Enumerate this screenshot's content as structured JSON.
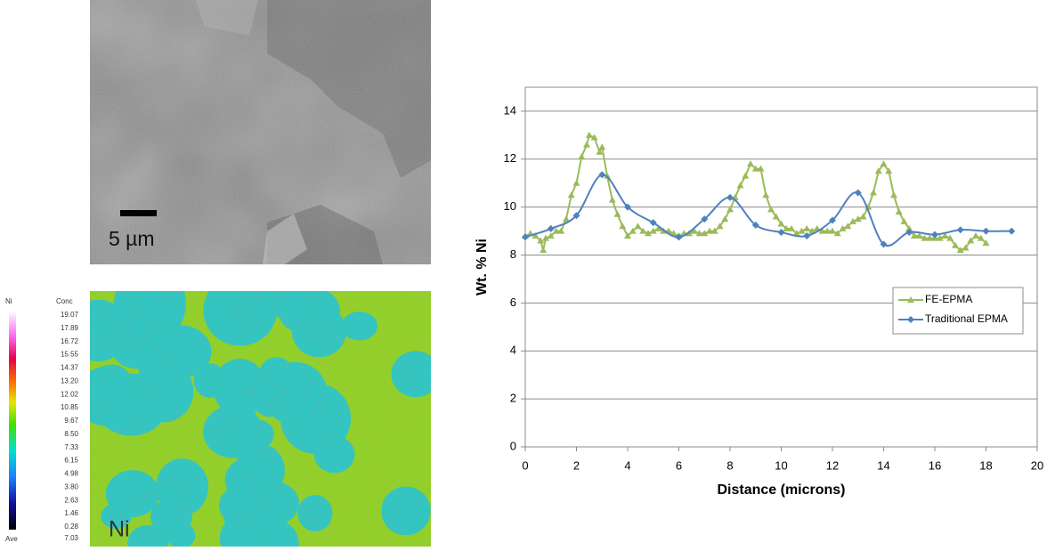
{
  "sem_image": {
    "scale_label": "5 µm"
  },
  "ni_map": {
    "colorbar_title": "Ni",
    "conc_label": "Conc",
    "levels": [
      "19.07",
      "17.89",
      "16.72",
      "15.55",
      "14.37",
      "13.20",
      "12.02",
      "10.85",
      "9.67",
      "8.50",
      "7.33",
      "6.15",
      "4.98",
      "3.80",
      "2.63",
      "1.46",
      "0.28"
    ],
    "ave_label": "Ave",
    "ave_value": "7.03",
    "map_label": "Ni"
  },
  "chart_data": {
    "type": "line",
    "x_label": "Distance (microns)",
    "y_label": "Wt. % Ni",
    "xlim": [
      0,
      20
    ],
    "xticks": [
      0,
      2,
      4,
      6,
      8,
      10,
      12,
      14,
      16,
      18,
      20
    ],
    "ylim": [
      0,
      15
    ],
    "yticks": [
      0,
      2,
      4,
      6,
      8,
      10,
      12,
      14
    ],
    "grid": true,
    "legend": "right",
    "series": [
      {
        "name": "FE-EPMA",
        "color": "#9bbb59",
        "marker": "triangle",
        "smooth": false,
        "x": [
          0,
          0.2,
          0.4,
          0.6,
          0.7,
          0.8,
          1.0,
          1.2,
          1.4,
          1.6,
          1.8,
          2.0,
          2.2,
          2.4,
          2.5,
          2.7,
          2.9,
          3.0,
          3.2,
          3.4,
          3.6,
          3.8,
          4.0,
          4.2,
          4.4,
          4.6,
          4.8,
          5.0,
          5.2,
          5.4,
          5.6,
          5.8,
          6.0,
          6.2,
          6.4,
          6.6,
          6.8,
          7.0,
          7.2,
          7.4,
          7.6,
          7.8,
          8.0,
          8.2,
          8.4,
          8.6,
          8.8,
          9.0,
          9.2,
          9.4,
          9.6,
          9.8,
          10.0,
          10.2,
          10.4,
          10.6,
          10.8,
          11.0,
          11.2,
          11.4,
          11.6,
          11.8,
          12.0,
          12.2,
          12.4,
          12.6,
          12.8,
          13.0,
          13.2,
          13.4,
          13.6,
          13.8,
          14.0,
          14.2,
          14.4,
          14.6,
          14.8,
          15.0,
          15.2,
          15.4,
          15.6,
          15.8,
          16.0,
          16.2,
          16.4,
          16.6,
          16.8,
          17.0,
          17.2,
          17.4,
          17.6,
          17.8,
          18.0
        ],
        "values": [
          8.8,
          8.9,
          8.8,
          8.6,
          8.2,
          8.7,
          8.8,
          9.0,
          9.0,
          9.5,
          10.5,
          11.0,
          12.1,
          12.6,
          13.0,
          12.9,
          12.3,
          12.5,
          11.3,
          10.3,
          9.7,
          9.2,
          8.8,
          9.0,
          9.2,
          9.0,
          8.9,
          9.0,
          9.1,
          9.0,
          9.0,
          8.9,
          8.8,
          8.9,
          8.9,
          9.0,
          8.9,
          8.9,
          9.0,
          9.0,
          9.2,
          9.5,
          9.9,
          10.4,
          10.9,
          11.3,
          11.8,
          11.6,
          11.6,
          10.5,
          9.9,
          9.6,
          9.3,
          9.1,
          9.1,
          8.9,
          9.0,
          9.1,
          9.0,
          9.1,
          9.0,
          9.0,
          9.0,
          8.9,
          9.1,
          9.2,
          9.4,
          9.5,
          9.6,
          10.0,
          10.6,
          11.5,
          11.8,
          11.5,
          10.5,
          9.8,
          9.4,
          9.1,
          8.8,
          8.8,
          8.7,
          8.7,
          8.7,
          8.7,
          8.8,
          8.7,
          8.4,
          8.2,
          8.3,
          8.6,
          8.8,
          8.7,
          8.5
        ]
      },
      {
        "name": "Traditional EPMA",
        "color": "#4f81bd",
        "marker": "diamond",
        "smooth": true,
        "x": [
          0,
          1,
          2,
          3,
          4,
          5,
          6,
          7,
          8,
          9,
          10,
          11,
          12,
          13,
          14,
          15,
          16,
          17,
          18,
          19
        ],
        "values": [
          8.75,
          9.1,
          9.65,
          11.35,
          10.0,
          9.35,
          8.75,
          9.5,
          10.4,
          9.25,
          8.95,
          8.8,
          9.45,
          10.6,
          8.45,
          8.95,
          8.85,
          9.05,
          9.0,
          9.0
        ]
      }
    ]
  }
}
